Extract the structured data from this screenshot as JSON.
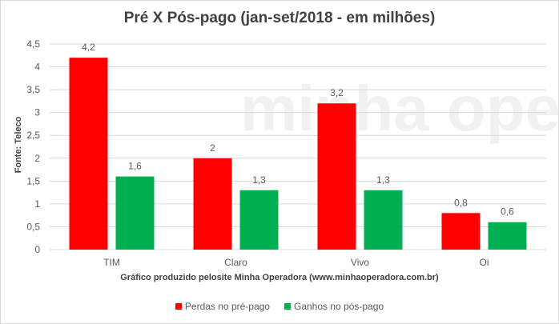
{
  "chart_data": {
    "type": "bar",
    "title": "Pré X Pós-pago  (jan-set/2018 - em milhões)",
    "xlabel": "Gráfico produzido pelosite Minha Operadora (www.minhaoperadora.com.br)",
    "ylabel": "Fonte: Teleco",
    "categories": [
      "TIM",
      "Claro",
      "Vivo",
      "Oi"
    ],
    "series": [
      {
        "name": "Perdas no pré-pago",
        "color": "#ff0000",
        "values": [
          4.2,
          2,
          3.2,
          0.8
        ],
        "labels": [
          "4,2",
          "2",
          "3,2",
          "0,8"
        ]
      },
      {
        "name": "Ganhos no pós-pago",
        "color": "#00b050",
        "values": [
          1.6,
          1.3,
          1.3,
          0.6
        ],
        "labels": [
          "1,6",
          "1,3",
          "1,3",
          "0,6"
        ]
      }
    ],
    "ylim": [
      0,
      4.5
    ],
    "yticks": [
      0,
      0.5,
      1,
      1.5,
      2,
      2.5,
      3,
      3.5,
      4,
      4.5
    ],
    "ytick_labels": [
      "0",
      "0,5",
      "1",
      "1,5",
      "2",
      "2,5",
      "3",
      "3,5",
      "4",
      "4,5"
    ],
    "grid": true,
    "legend": "bottom",
    "watermark": "minha operadora"
  }
}
